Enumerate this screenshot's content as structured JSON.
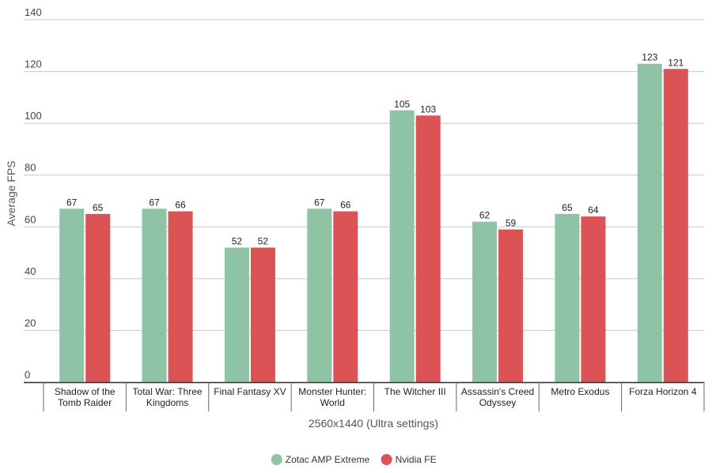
{
  "chart_data": {
    "type": "bar",
    "title": "",
    "xlabel": "2560x1440 (Ultra settings)",
    "ylabel": "Average FPS",
    "ylim": [
      0,
      140
    ],
    "yticks": [
      0,
      20,
      40,
      60,
      80,
      100,
      120,
      140
    ],
    "grid": true,
    "legend_position": "bottom",
    "categories": [
      [
        "Shadow of the",
        "Tomb Raider"
      ],
      [
        "Total War: Three",
        "Kingdoms"
      ],
      [
        "Final Fantasy XV"
      ],
      [
        "Monster Hunter:",
        "World"
      ],
      [
        "The Witcher III"
      ],
      [
        "Assassin's Creed",
        "Odyssey"
      ],
      [
        "Metro Exodus"
      ],
      [
        "Forza Horizon 4"
      ]
    ],
    "series": [
      {
        "name": "Zotac AMP Extreme",
        "color": "#8fc3a6",
        "values": [
          67,
          67,
          52,
          67,
          105,
          62,
          65,
          123
        ]
      },
      {
        "name": "Nvidia FE",
        "color": "#dc5356",
        "values": [
          65,
          66,
          52,
          66,
          103,
          59,
          64,
          121
        ]
      }
    ]
  }
}
